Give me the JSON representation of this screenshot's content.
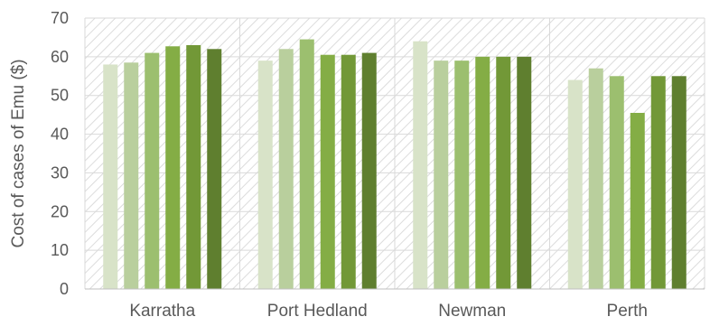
{
  "chart_data": {
    "type": "bar",
    "title": "",
    "xlabel": "",
    "ylabel": "Cost of cases of Emu ($)",
    "ylim": [
      0,
      70
    ],
    "yticks": [
      0,
      10,
      20,
      30,
      40,
      50,
      60,
      70
    ],
    "categories": [
      "Karratha",
      "Port Hedland",
      "Newman",
      "Perth"
    ],
    "series": [
      {
        "values": [
          58,
          59,
          64,
          54
        ]
      },
      {
        "values": [
          58.5,
          62,
          59,
          57
        ]
      },
      {
        "values": [
          61,
          64.5,
          59,
          55
        ]
      },
      {
        "values": [
          62.7,
          60.5,
          60,
          45.5
        ]
      },
      {
        "values": [
          63,
          60.5,
          60,
          55
        ]
      },
      {
        "values": [
          62,
          61,
          60,
          55
        ]
      }
    ],
    "grid": true,
    "legend": "none",
    "plot_background": "diagonal-hatch"
  },
  "colors": {
    "series": [
      "#d8e3c8",
      "#b9cf9d",
      "#9cbf6f",
      "#84ad45",
      "#729837",
      "#5f7f2f"
    ],
    "grid": "#d9d9d9",
    "hatch": "#dcdcdc",
    "text": "#595959"
  }
}
